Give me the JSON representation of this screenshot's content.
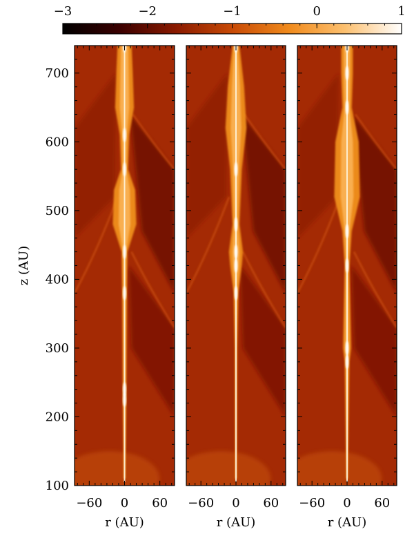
{
  "chart_data": {
    "type": "heatmap",
    "colorbar": {
      "min": -3,
      "max": 1,
      "tick_values": [
        -3,
        -2,
        -1,
        0,
        1
      ],
      "tick_labels": [
        "−3",
        "−2",
        "−1",
        "0",
        "1"
      ],
      "colormap": [
        "#000000",
        "#3a0000",
        "#8a1a00",
        "#c84a06",
        "#f08a1c",
        "#fcc070",
        "#ffffff"
      ]
    },
    "panels": [
      {
        "id": "panel-1",
        "jet_knots": [
          [
            110,
            1
          ],
          [
            225,
            3
          ],
          [
            240,
            3
          ],
          [
            380,
            4
          ],
          [
            440,
            5
          ],
          [
            480,
            20
          ],
          [
            530,
            18
          ],
          [
            560,
            6
          ],
          [
            610,
            8
          ],
          [
            650,
            16
          ],
          [
            700,
            14
          ],
          [
            740,
            12
          ]
        ]
      },
      {
        "id": "panel-2",
        "jet_knots": [
          [
            110,
            1
          ],
          [
            300,
            2
          ],
          [
            380,
            4
          ],
          [
            420,
            10
          ],
          [
            440,
            12
          ],
          [
            480,
            6
          ],
          [
            560,
            10
          ],
          [
            620,
            18
          ],
          [
            680,
            14
          ],
          [
            740,
            6
          ]
        ]
      },
      {
        "id": "panel-3",
        "jet_knots": [
          [
            110,
            1
          ],
          [
            280,
            4
          ],
          [
            300,
            7
          ],
          [
            420,
            4
          ],
          [
            470,
            8
          ],
          [
            520,
            22
          ],
          [
            600,
            20
          ],
          [
            650,
            8
          ],
          [
            700,
            10
          ],
          [
            740,
            10
          ]
        ]
      }
    ],
    "xlabel": "r (AU)",
    "ylabel": "z (AU)",
    "xlim": [
      -85,
      85
    ],
    "ylim": [
      100,
      740
    ],
    "x_ticks": [
      -60,
      0,
      60
    ],
    "x_tick_labels": [
      "−60",
      "0",
      "60"
    ],
    "y_ticks": [
      100,
      200,
      300,
      400,
      500,
      600,
      700
    ],
    "y_tick_labels": [
      "100",
      "200",
      "300",
      "400",
      "500",
      "600",
      "700"
    ]
  }
}
